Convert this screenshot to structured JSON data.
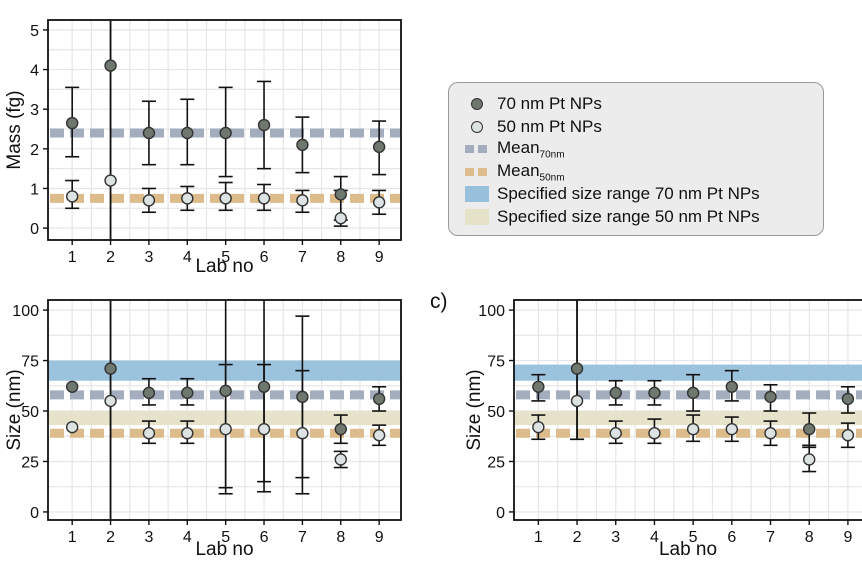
{
  "colors": {
    "mean70": "#a3adbe",
    "mean50": "#dcbc8a",
    "range70": "#97c0dc",
    "range50": "#e6e2c8",
    "point70": "#6e786e",
    "point50": "#dde3e3",
    "grid": "#e6e6e6"
  },
  "legend": {
    "items": [
      {
        "kind": "dot",
        "label": "70 nm Pt NPs",
        "color": "#6e786e"
      },
      {
        "kind": "dot",
        "label": "50 nm Pt NPs",
        "color": "#dde3e3"
      },
      {
        "kind": "dash",
        "label": "Mean",
        "sub": "70nm",
        "color": "#a3adbe"
      },
      {
        "kind": "dash",
        "label": "Mean",
        "sub": "50nm",
        "color": "#dcbc8a"
      },
      {
        "kind": "patch",
        "label": "Specified size range 70 nm Pt NPs",
        "color": "#97c0dc"
      },
      {
        "kind": "patch",
        "label": "Specified size range 50 nm Pt NPs",
        "color": "#e6e2c8"
      }
    ]
  },
  "chart_data": [
    {
      "type": "scatter",
      "panel": "a",
      "panel_label": "",
      "xlabel": "Lab no",
      "ylabel": "Mass (fg)",
      "categories": [
        "1",
        "2",
        "3",
        "4",
        "5",
        "6",
        "7",
        "8",
        "9"
      ],
      "ylim": [
        -0.3,
        5.25
      ],
      "yticks": [
        0,
        1,
        2,
        3,
        4,
        5
      ],
      "grid": true,
      "mean_lines": [
        {
          "series": "70 nm Pt NPs",
          "value": 2.4
        },
        {
          "series": "50 nm Pt NPs",
          "value": 0.75
        }
      ],
      "bands": [],
      "series": [
        {
          "name": "70 nm Pt NPs",
          "values": [
            2.65,
            4.1,
            2.4,
            2.4,
            2.4,
            2.6,
            2.1,
            0.85,
            2.05
          ],
          "err_low": [
            1.8,
            -0.3,
            1.6,
            1.6,
            1.3,
            1.5,
            1.4,
            0.2,
            1.35
          ],
          "err_high": [
            3.55,
            5.25,
            3.2,
            3.25,
            3.55,
            3.7,
            2.8,
            1.3,
            2.7
          ]
        },
        {
          "name": "50 nm Pt NPs",
          "values": [
            0.8,
            1.2,
            0.7,
            0.75,
            0.75,
            0.75,
            0.7,
            0.25,
            0.65
          ],
          "err_low": [
            0.5,
            -0.3,
            0.4,
            0.45,
            0.45,
            0.45,
            0.4,
            0.05,
            0.35
          ],
          "err_high": [
            1.2,
            5.25,
            1.0,
            1.05,
            1.15,
            1.1,
            0.95,
            0.95,
            0.95
          ]
        }
      ]
    },
    {
      "type": "scatter",
      "panel": "b",
      "panel_label": "",
      "xlabel": "Lab no",
      "ylabel": "Size (nm)",
      "categories": [
        "1",
        "2",
        "3",
        "4",
        "5",
        "6",
        "7",
        "8",
        "9"
      ],
      "ylim": [
        -4,
        105
      ],
      "yticks": [
        0,
        25,
        50,
        75,
        100
      ],
      "grid": true,
      "mean_lines": [
        {
          "series": "70 nm Pt NPs",
          "value": 58
        },
        {
          "series": "50 nm Pt NPs",
          "value": 39
        }
      ],
      "bands": [
        {
          "series": "70 nm Pt NPs",
          "range": [
            65,
            75
          ]
        },
        {
          "series": "50 nm Pt NPs",
          "range": [
            43,
            50
          ]
        }
      ],
      "series": [
        {
          "name": "70 nm Pt NPs",
          "values": [
            62,
            71,
            59,
            59,
            60,
            62,
            57,
            41,
            56
          ],
          "err_low": [
            62,
            -4,
            53,
            53,
            12,
            15,
            17,
            34,
            50
          ],
          "err_high": [
            62,
            105,
            66,
            66,
            73,
            73,
            70,
            48,
            62
          ]
        },
        {
          "name": "50 nm Pt NPs",
          "values": [
            42,
            55,
            39,
            39,
            41,
            41,
            39,
            26,
            38
          ],
          "err_low": [
            42,
            -4,
            34,
            34,
            9,
            10,
            9,
            22,
            33
          ],
          "err_high": [
            42,
            105,
            45,
            45,
            105,
            105,
            97,
            30,
            43
          ]
        }
      ]
    },
    {
      "type": "scatter",
      "panel": "c",
      "panel_label": "c)",
      "xlabel": "Lab no",
      "ylabel": "Size (nm)",
      "categories": [
        "1",
        "2",
        "3",
        "4",
        "5",
        "6",
        "7",
        "8",
        "9"
      ],
      "ylim": [
        -4,
        105
      ],
      "yticks": [
        0,
        25,
        50,
        75,
        100
      ],
      "grid": true,
      "mean_lines": [
        {
          "series": "70 nm Pt NPs",
          "value": 58
        },
        {
          "series": "50 nm Pt NPs",
          "value": 39
        }
      ],
      "bands": [
        {
          "series": "70 nm Pt NPs",
          "range": [
            65,
            73
          ]
        },
        {
          "series": "50 nm Pt NPs",
          "range": [
            43,
            50
          ]
        }
      ],
      "series": [
        {
          "name": "70 nm Pt NPs",
          "values": [
            62,
            71,
            59,
            59,
            59,
            62,
            57,
            41,
            56
          ],
          "err_low": [
            55,
            36,
            53,
            53,
            50,
            55,
            50,
            32,
            49
          ],
          "err_high": [
            68,
            105,
            65,
            65,
            68,
            70,
            63,
            49,
            62
          ]
        },
        {
          "name": "50 nm Pt NPs",
          "values": [
            42,
            55,
            39,
            39,
            41,
            41,
            39,
            26,
            38
          ],
          "err_low": [
            36,
            36,
            34,
            34,
            35,
            35,
            33,
            20,
            32
          ],
          "err_high": [
            48,
            105,
            45,
            46,
            48,
            47,
            45,
            33,
            44
          ]
        }
      ]
    }
  ]
}
